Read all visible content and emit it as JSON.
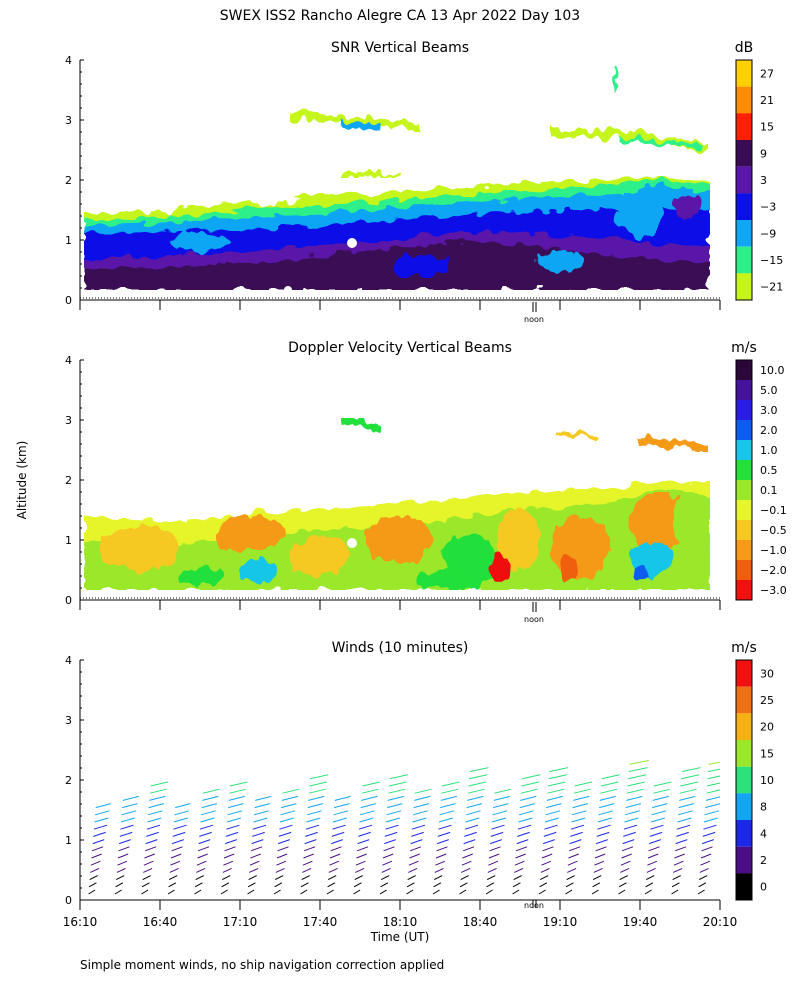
{
  "figure": {
    "title": "SWEX ISS2 Rancho Alegre CA  13 Apr 2022 Day 103",
    "ylabel": "Altitude (km)",
    "xlabel": "Time (UT)",
    "footnote": "Simple moment winds, no ship navigation correction applied",
    "noon_label": "noon"
  },
  "chart_data": [
    {
      "type": "heatmap",
      "title": "SNR Vertical Beams",
      "colorbar_unit": "dB",
      "colorbar_ticks": [
        "27",
        "21",
        "15",
        "9",
        "3",
        "−3",
        "−9",
        "−15",
        "−21"
      ],
      "colorbar_colors": [
        "#ffd000",
        "#ff8c00",
        "#ff2000",
        "#3a0b55",
        "#5a16a8",
        "#0b10e8",
        "#10a6f5",
        "#2df08a",
        "#c6f51c"
      ],
      "ylim": [
        0,
        4
      ],
      "yticks": [
        "0",
        "1",
        "2",
        "3",
        "4"
      ],
      "xlim": [
        "16:10",
        "20:10"
      ]
    },
    {
      "type": "heatmap",
      "title": "Doppler Velocity Vertical Beams",
      "colorbar_unit": "m/s",
      "colorbar_ticks": [
        "10.0",
        "5.0",
        "3.0",
        "2.0",
        "1.0",
        "0.5",
        "0.1",
        "−0.1",
        "−0.5",
        "−1.0",
        "−2.0",
        "−3.0"
      ],
      "colorbar_colors": [
        "#2b0638",
        "#45129c",
        "#2a1be6",
        "#0c5cf0",
        "#17c6e8",
        "#24e03a",
        "#9be82a",
        "#e6f52c",
        "#f6c822",
        "#f59a18",
        "#f05e10",
        "#f01010"
      ],
      "ylim": [
        0,
        4
      ],
      "yticks": [
        "0",
        "1",
        "2",
        "3",
        "4"
      ],
      "xlim": [
        "16:10",
        "20:10"
      ]
    },
    {
      "type": "scatter",
      "title": "Winds (10 minutes)",
      "colorbar_unit": "m/s",
      "colorbar_ticks": [
        "30",
        "25",
        "20",
        "15",
        "10",
        "8",
        "4",
        "2",
        "0"
      ],
      "colorbar_colors": [
        "#f01010",
        "#f07015",
        "#f5b014",
        "#9be82a",
        "#2ce07a",
        "#12a6f2",
        "#1c28e8",
        "#4b0f85",
        "#000000"
      ],
      "ylim": [
        0,
        4
      ],
      "yticks": [
        "0",
        "1",
        "2",
        "3",
        "4"
      ],
      "xlim": [
        "16:10",
        "20:10"
      ],
      "xticks": [
        "16:10",
        "16:40",
        "17:10",
        "17:40",
        "18:10",
        "18:40",
        "19:10",
        "19:40",
        "20:10"
      ]
    }
  ]
}
